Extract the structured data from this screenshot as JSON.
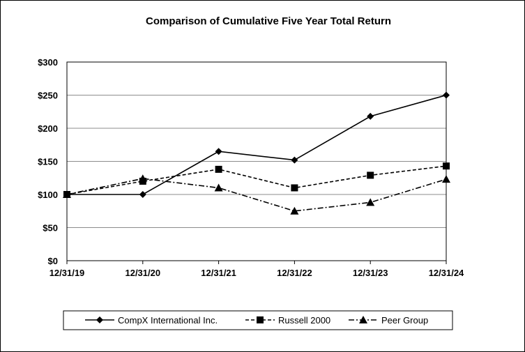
{
  "chart_data": {
    "type": "line",
    "title": "Comparison of Cumulative Five Year Total Return",
    "xlabel": "",
    "ylabel": "",
    "categories": [
      "12/31/19",
      "12/31/20",
      "12/31/21",
      "12/31/22",
      "12/31/23",
      "12/31/24"
    ],
    "y_ticks": [
      "$0",
      "$50",
      "$100",
      "$150",
      "$200",
      "$250",
      "$300"
    ],
    "ylim": [
      0,
      300
    ],
    "grid": true,
    "legend_position": "bottom",
    "series": [
      {
        "name": "CompX International Inc.",
        "values": [
          100,
          100,
          165,
          152,
          218,
          250
        ],
        "marker": "diamond",
        "line_style": "solid",
        "color": "#000000"
      },
      {
        "name": "Russell 2000",
        "values": [
          100,
          120,
          138,
          110,
          129,
          143
        ],
        "marker": "square",
        "line_style": "dashed",
        "color": "#000000"
      },
      {
        "name": "Peer Group",
        "values": [
          100,
          124,
          110,
          75,
          88,
          123
        ],
        "marker": "triangle",
        "line_style": "dash-dot",
        "color": "#000000"
      }
    ]
  }
}
